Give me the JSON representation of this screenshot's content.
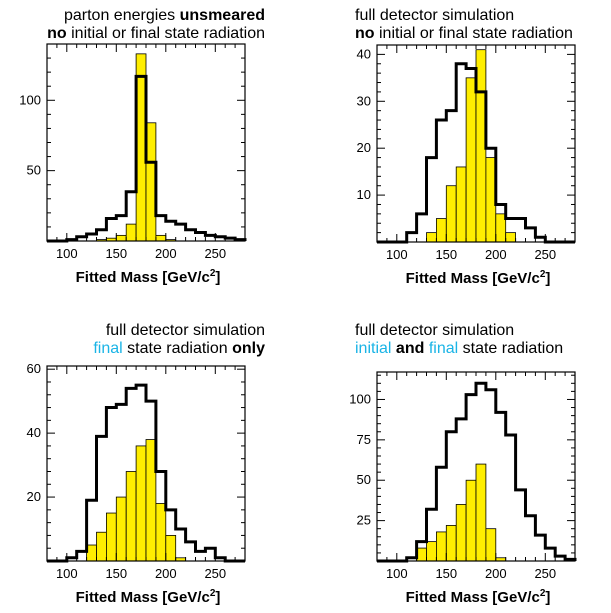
{
  "colors": {
    "fill": "#ffee00",
    "fill_edge": "#000000",
    "outline": "#000000",
    "highlight_text": "#1ab4e6"
  },
  "chart_data": [
    {
      "type": "histogram",
      "title_lines": [
        [
          {
            "text": "parton energies ",
            "style": "normal"
          },
          {
            "text": "unsmeared",
            "style": "bold"
          }
        ],
        [
          {
            "text": "no",
            "style": "bold"
          },
          {
            "text": " initial or final state radiation",
            "style": "normal"
          }
        ]
      ],
      "title_align": "right",
      "xlabel": "Fitted Mass",
      "xunit": "[GeV/c",
      "xunit_sup": "2",
      "xunit_close": "]",
      "xlim": [
        80,
        280
      ],
      "ylim": [
        0,
        140
      ],
      "xticks": [
        100,
        150,
        200,
        250
      ],
      "yticks": [
        50,
        100
      ],
      "bin_edges": [
        80,
        90,
        100,
        110,
        120,
        130,
        140,
        150,
        160,
        170,
        180,
        190,
        200,
        210,
        220,
        230,
        240,
        250,
        260,
        270,
        280
      ],
      "series": [
        {
          "kind": "filled",
          "values": [
            0,
            0,
            0,
            0,
            0,
            1,
            2,
            4,
            12,
            133,
            84,
            4,
            1,
            0,
            0,
            0,
            0,
            0,
            0,
            0
          ]
        },
        {
          "kind": "outline",
          "values": [
            0,
            0,
            1,
            3,
            5,
            8,
            16,
            18,
            35,
            117,
            56,
            18,
            14,
            12,
            8,
            6,
            4,
            3,
            2,
            1
          ]
        }
      ]
    },
    {
      "type": "histogram",
      "title_lines": [
        [
          {
            "text": "full detector simulation",
            "style": "normal"
          }
        ],
        [
          {
            "text": "no",
            "style": "bold"
          },
          {
            "text": " initial or final state radiation",
            "style": "normal"
          }
        ]
      ],
      "title_align": "left",
      "xlabel": "Fitted Mass",
      "xunit": "[GeV/c",
      "xunit_sup": "2",
      "xunit_close": "]",
      "xlim": [
        80,
        280
      ],
      "ylim": [
        0,
        42
      ],
      "xticks": [
        100,
        150,
        200,
        250
      ],
      "yticks": [
        10,
        20,
        30,
        40
      ],
      "bin_edges": [
        80,
        90,
        100,
        110,
        120,
        130,
        140,
        150,
        160,
        170,
        180,
        190,
        200,
        210,
        220,
        230,
        240,
        250,
        260,
        270,
        280
      ],
      "series": [
        {
          "kind": "filled",
          "values": [
            0,
            0,
            0,
            0,
            0,
            2,
            5,
            12,
            16,
            35,
            41,
            18,
            6,
            2,
            0,
            0,
            0,
            0,
            0,
            0
          ]
        },
        {
          "kind": "outline",
          "values": [
            0,
            0,
            0,
            2,
            6,
            18,
            26,
            28,
            38,
            37,
            32,
            20,
            8,
            5,
            5,
            3,
            1,
            0,
            0,
            0
          ]
        }
      ]
    },
    {
      "type": "histogram",
      "title_lines": [
        [
          {
            "text": "full detector simulation",
            "style": "normal"
          }
        ],
        [
          {
            "text": "final",
            "style": "highlight"
          },
          {
            "text": " state radiation ",
            "style": "normal"
          },
          {
            "text": "only",
            "style": "bold"
          }
        ]
      ],
      "title_align": "right",
      "xlabel": "Fitted Mass",
      "xunit": "[GeV/c",
      "xunit_sup": "2",
      "xunit_close": "]",
      "xlim": [
        80,
        280
      ],
      "ylim": [
        0,
        61
      ],
      "xticks": [
        100,
        150,
        200,
        250
      ],
      "yticks": [
        20,
        40,
        60
      ],
      "bin_edges": [
        80,
        90,
        100,
        110,
        120,
        130,
        140,
        150,
        160,
        170,
        180,
        190,
        200,
        210,
        220,
        230,
        240,
        250,
        260,
        270,
        280
      ],
      "series": [
        {
          "kind": "filled",
          "values": [
            0,
            0,
            0,
            0,
            5,
            9,
            15,
            20,
            28,
            36,
            38,
            18,
            8,
            1,
            0,
            0,
            0,
            0,
            0,
            0
          ]
        },
        {
          "kind": "outline",
          "values": [
            0,
            0,
            1,
            3,
            19,
            39,
            48,
            49,
            54,
            55,
            50,
            28,
            16,
            10,
            6,
            3,
            4,
            1,
            0,
            0
          ]
        }
      ]
    },
    {
      "type": "histogram",
      "title_lines": [
        [
          {
            "text": "full detector simulation",
            "style": "normal"
          }
        ],
        [
          {
            "text": "initial",
            "style": "highlight"
          },
          {
            "text": " and ",
            "style": "bold"
          },
          {
            "text": "final",
            "style": "highlight"
          },
          {
            "text": " state radiation",
            "style": "normal"
          }
        ]
      ],
      "title_align": "left",
      "xlabel": "Fitted Mass",
      "xunit": "[GeV/c",
      "xunit_sup": "2",
      "xunit_close": "]",
      "xlim": [
        80,
        280
      ],
      "ylim": [
        0,
        117
      ],
      "xticks": [
        100,
        150,
        200,
        250
      ],
      "yticks": [
        25,
        50,
        75,
        100
      ],
      "bin_edges": [
        80,
        90,
        100,
        110,
        120,
        130,
        140,
        150,
        160,
        170,
        180,
        190,
        200,
        210,
        220,
        230,
        240,
        250,
        260,
        270,
        280
      ],
      "series": [
        {
          "kind": "filled",
          "values": [
            0,
            0,
            0,
            0,
            8,
            12,
            18,
            22,
            35,
            50,
            60,
            20,
            2,
            0,
            0,
            0,
            0,
            0,
            0,
            0
          ]
        },
        {
          "kind": "outline",
          "values": [
            0,
            0,
            0,
            2,
            12,
            32,
            58,
            80,
            88,
            103,
            110,
            106,
            92,
            78,
            44,
            28,
            16,
            8,
            3,
            1
          ]
        }
      ]
    }
  ]
}
